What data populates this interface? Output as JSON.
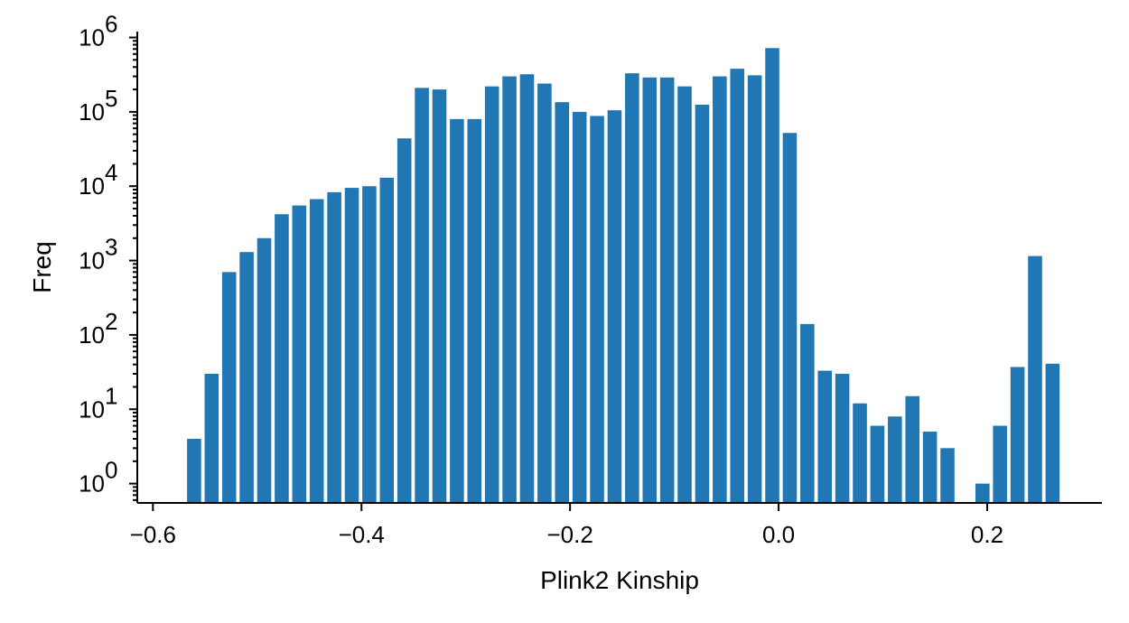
{
  "chart_data": {
    "type": "bar",
    "xlabel": "Plink2 Kinship",
    "ylabel": "Freq",
    "yscale": "log",
    "xlim": [
      -0.615,
      0.31
    ],
    "ylim": [
      0.55,
      1200000
    ],
    "x_ticks": [
      -0.6,
      -0.4,
      -0.2,
      0.0,
      0.2
    ],
    "x_tick_labels": [
      "−0.6",
      "−0.4",
      "−0.2",
      "0.0",
      "0.2"
    ],
    "y_ticks": [
      1,
      10,
      100,
      1000,
      10000,
      100000,
      1000000
    ],
    "y_tick_labels": [
      {
        "base": "10",
        "exp": "0"
      },
      {
        "base": "10",
        "exp": "1"
      },
      {
        "base": "10",
        "exp": "2"
      },
      {
        "base": "10",
        "exp": "3"
      },
      {
        "base": "10",
        "exp": "4"
      },
      {
        "base": "10",
        "exp": "5"
      },
      {
        "base": "10",
        "exp": "6"
      }
    ],
    "bar_width": 0.0135,
    "bar_color": "#2077b4",
    "grid": false,
    "x": [
      -0.5605,
      -0.5437,
      -0.5269,
      -0.5101,
      -0.4933,
      -0.4765,
      -0.4597,
      -0.4429,
      -0.4261,
      -0.4093,
      -0.3925,
      -0.3757,
      -0.3589,
      -0.3421,
      -0.3253,
      -0.3085,
      -0.2917,
      -0.2749,
      -0.2581,
      -0.2413,
      -0.2245,
      -0.2077,
      -0.1909,
      -0.1741,
      -0.1573,
      -0.1405,
      -0.1237,
      -0.1069,
      -0.0901,
      -0.0733,
      -0.0565,
      -0.0397,
      -0.0229,
      -0.0061,
      0.0107,
      0.0275,
      0.0443,
      0.0611,
      0.0779,
      0.0947,
      0.1115,
      0.1283,
      0.1451,
      0.1619,
      0.1955,
      0.2123,
      0.2291,
      0.2459,
      0.2627
    ],
    "values": [
      4,
      30,
      700,
      1300,
      2000,
      4200,
      5500,
      6700,
      8300,
      9500,
      10000,
      13000,
      44000,
      210000,
      200000,
      80000,
      80000,
      220000,
      300000,
      320000,
      240000,
      135000,
      100000,
      88000,
      105000,
      330000,
      290000,
      290000,
      220000,
      125000,
      300000,
      380000,
      310000,
      720000,
      52000,
      140,
      33,
      30,
      12,
      6,
      8,
      15,
      5,
      3,
      1,
      6,
      37,
      1150,
      41
    ]
  }
}
